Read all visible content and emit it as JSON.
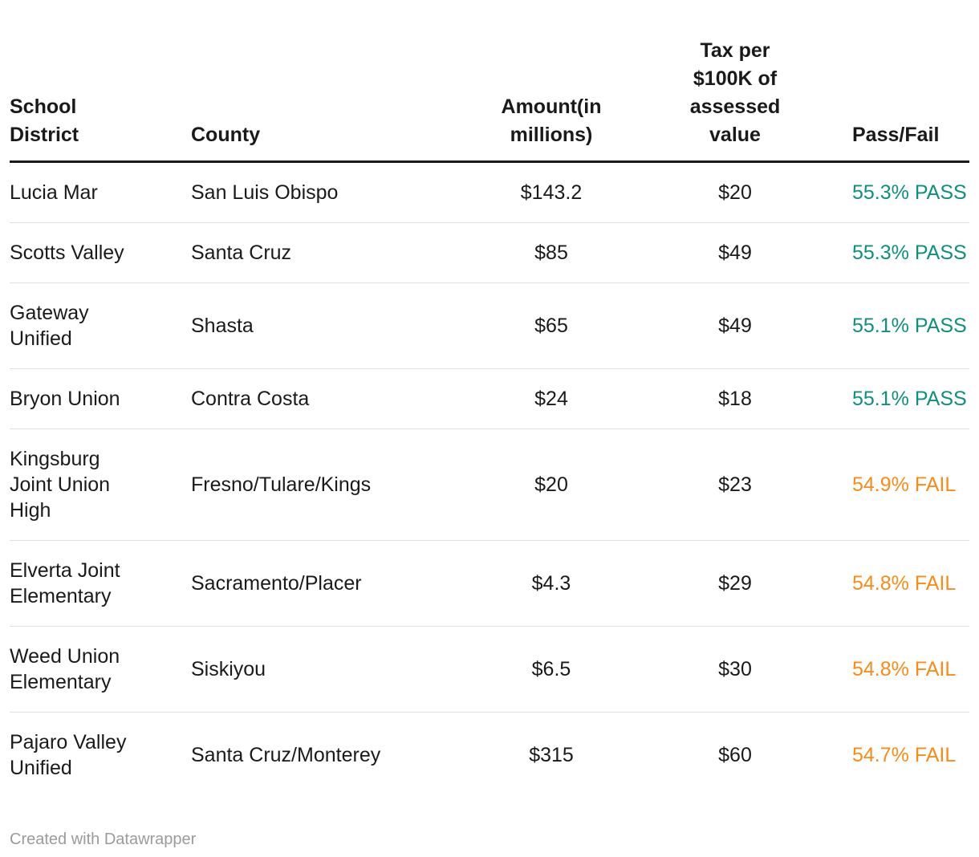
{
  "chart_data": {
    "type": "table",
    "columns": [
      {
        "label": "School District",
        "key": "school_district",
        "align": "left"
      },
      {
        "label": "County",
        "key": "county",
        "align": "left"
      },
      {
        "label": "Amount(in millions)",
        "key": "amount_millions",
        "align": "center"
      },
      {
        "label": "Tax per $100K of assessed value",
        "key": "tax_per_100k",
        "align": "center"
      },
      {
        "label": "Pass/Fail",
        "key": "pass_fail",
        "align": "left"
      }
    ],
    "rows": [
      {
        "school_district": "Lucia Mar",
        "county": "San Luis Obispo",
        "amount_millions": "$143.2",
        "tax_per_100k": "$20",
        "pass_fail": "55.3% PASS",
        "status": "pass"
      },
      {
        "school_district": "Scotts Valley",
        "county": "Santa Cruz",
        "amount_millions": "$85",
        "tax_per_100k": "$49",
        "pass_fail": "55.3% PASS",
        "status": "pass"
      },
      {
        "school_district": "Gateway Unified",
        "county": "Shasta",
        "amount_millions": "$65",
        "tax_per_100k": "$49",
        "pass_fail": "55.1% PASS",
        "status": "pass"
      },
      {
        "school_district": "Bryon Union",
        "county": "Contra Costa",
        "amount_millions": "$24",
        "tax_per_100k": "$18",
        "pass_fail": "55.1% PASS",
        "status": "pass"
      },
      {
        "school_district": "Kingsburg Joint Union High",
        "county": "Fresno/Tulare/Kings",
        "amount_millions": "$20",
        "tax_per_100k": "$23",
        "pass_fail": "54.9% FAIL",
        "status": "fail"
      },
      {
        "school_district": "Elverta Joint Elementary",
        "county": "Sacramento/Placer",
        "amount_millions": "$4.3",
        "tax_per_100k": "$29",
        "pass_fail": "54.8% FAIL",
        "status": "fail"
      },
      {
        "school_district": "Weed Union Elementary",
        "county": "Siskiyou",
        "amount_millions": "$6.5",
        "tax_per_100k": "$30",
        "pass_fail": "54.8% FAIL",
        "status": "fail"
      },
      {
        "school_district": "Pajaro Valley Unified",
        "county": "Santa Cruz/Monterey",
        "amount_millions": "$315",
        "tax_per_100k": "$60",
        "pass_fail": "54.7% FAIL",
        "status": "fail"
      }
    ]
  },
  "colors": {
    "text": "#1a1a1a",
    "pass": "#0e907c",
    "fail": "#fa8c16",
    "separator": "#e0e0e0",
    "header_rule": "#1a1a1a",
    "footer_text": "#9b9b9b"
  },
  "footer": {
    "credit": "Created with Datawrapper"
  }
}
